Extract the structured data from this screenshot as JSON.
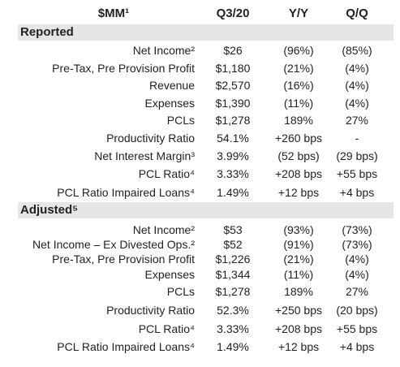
{
  "header": {
    "label": "$MM¹",
    "columns": [
      "Q3/20",
      "Y/Y",
      "Q/Q"
    ]
  },
  "sections": [
    {
      "title": "Reported",
      "rows": [
        [
          "Net Income²",
          "$26",
          "(96%)",
          "(85%)"
        ],
        [
          "Pre-Tax, Pre Provision Profit",
          "$1,180",
          "(21%)",
          "(4%)"
        ],
        [
          "Revenue",
          "$2,570",
          "(16%)",
          "(4%)"
        ],
        [
          "Expenses",
          "$1,390",
          "(11%)",
          "(4%)"
        ],
        [
          "PCLs",
          "$1,278",
          "189%",
          "27%"
        ],
        [
          "Productivity Ratio",
          "54.1%",
          "+260 bps",
          "-"
        ],
        [
          "Net Interest Margin³",
          "3.99%",
          "(52 bps)",
          "(29 bps)"
        ],
        [
          "PCL Ratio⁴",
          "3.33%",
          "+208 bps",
          "+55 bps"
        ],
        [
          "PCL Ratio Impaired Loans⁴",
          "1.49%",
          "+12 bps",
          "+4 bps"
        ]
      ]
    },
    {
      "title": "Adjusted⁵",
      "rows": [
        [
          "Net Income²",
          "$53",
          "(93%)",
          "(73%)"
        ],
        [
          "Net Income – Ex Divested Ops.²",
          "$52",
          "(91%)",
          "(73%)"
        ],
        [
          "Pre-Tax, Pre Provision Profit",
          "$1,226",
          "(21%)",
          "(4%)"
        ],
        [
          "Expenses",
          "$1,344",
          "(11%)",
          "(4%)"
        ],
        [
          "PCLs",
          "$1,278",
          "189%",
          "27%"
        ],
        [
          "Productivity Ratio",
          "52.3%",
          "+250 bps",
          "(20 bps)"
        ],
        [
          "PCL Ratio⁴",
          "3.33%",
          "+208 bps",
          "+55 bps"
        ],
        [
          "PCL Ratio Impaired Loans⁴",
          "1.49%",
          "+12 bps",
          "+4 bps"
        ]
      ]
    }
  ]
}
